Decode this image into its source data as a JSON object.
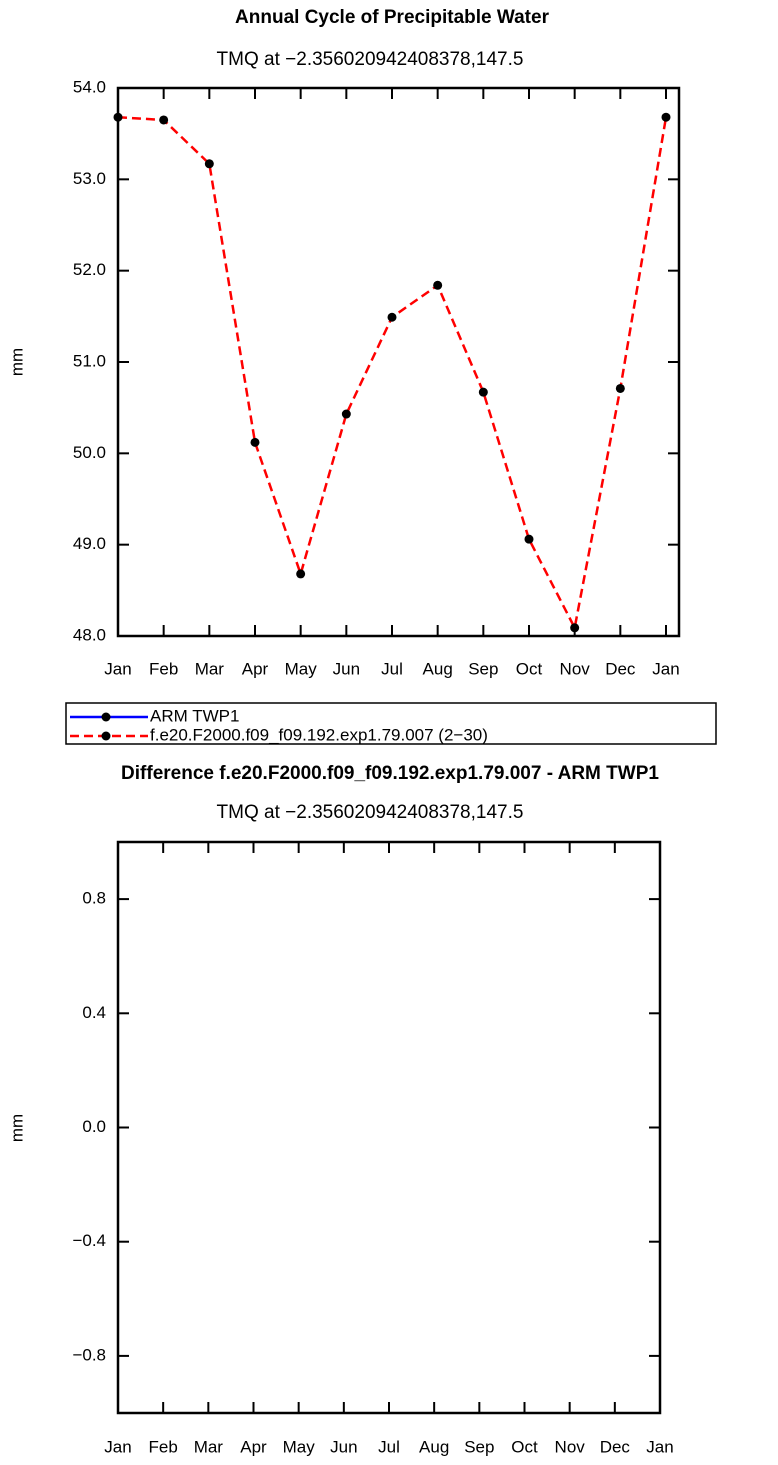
{
  "chart_data": [
    {
      "type": "line",
      "title": "Annual Cycle of Precipitable Water",
      "subtitle": "TMQ at −2.356020942408378,147.5",
      "ylabel": "mm",
      "categories": [
        "Jan",
        "Feb",
        "Mar",
        "Apr",
        "May",
        "Jun",
        "Jul",
        "Aug",
        "Sep",
        "Oct",
        "Nov",
        "Dec",
        "Jan"
      ],
      "series": [
        {
          "name": "ARM TWP1",
          "color": "#0000ff",
          "line_style": "solid",
          "values": [
            null,
            null,
            null,
            null,
            null,
            null,
            null,
            null,
            null,
            null,
            null,
            null,
            null
          ]
        },
        {
          "name": "f.e20.F2000.f09_f09.192.exp1.79.007 (2−30)",
          "color": "#ff0000",
          "line_style": "dashed",
          "values": [
            53.68,
            53.65,
            53.17,
            50.12,
            48.68,
            50.43,
            51.49,
            51.84,
            50.67,
            49.06,
            48.09,
            50.71,
            53.68
          ]
        }
      ],
      "ylim": [
        48,
        54
      ],
      "yticks": [
        {
          "value": 48,
          "label": "48.0"
        },
        {
          "value": 49,
          "label": "49.0"
        },
        {
          "value": 50,
          "label": "50.0"
        },
        {
          "value": 51,
          "label": "51.0"
        },
        {
          "value": 52,
          "label": "52.0"
        },
        {
          "value": 53,
          "label": "53.0"
        },
        {
          "value": 54,
          "label": "54.0"
        }
      ]
    },
    {
      "type": "line",
      "title": "Difference f.e20.F2000.f09_f09.192.exp1.79.007 - ARM TWP1",
      "subtitle": "TMQ at −2.356020942408378,147.5",
      "ylabel": "mm",
      "categories": [
        "Jan",
        "Feb",
        "Mar",
        "Apr",
        "May",
        "Jun",
        "Jul",
        "Aug",
        "Sep",
        "Oct",
        "Nov",
        "Dec",
        "Jan"
      ],
      "values": [
        null,
        null,
        null,
        null,
        null,
        null,
        null,
        null,
        null,
        null,
        null,
        null,
        null
      ],
      "ylim": [
        -1,
        1
      ],
      "yticks": [
        {
          "value": -0.8,
          "label": "−0.8"
        },
        {
          "value": -0.4,
          "label": "−0.4"
        },
        {
          "value": 0,
          "label": "0.0"
        },
        {
          "value": 0.4,
          "label": "0.4"
        },
        {
          "value": 0.8,
          "label": "0.8"
        }
      ]
    }
  ]
}
